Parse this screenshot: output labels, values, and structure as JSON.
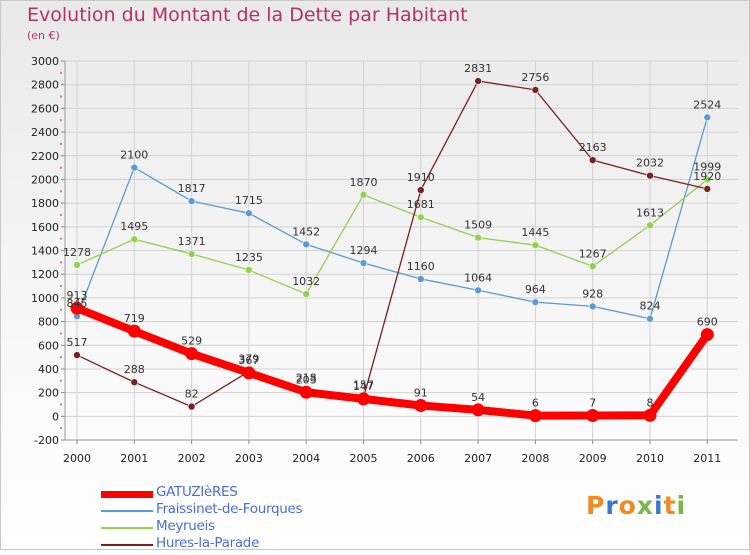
{
  "title": "Evolution du Montant de la Dette par Habitant",
  "subtitle": "(en €)",
  "logo": {
    "text": "Proxiti",
    "colors": [
      "#f08a24",
      "#3a78c9",
      "#f08a24",
      "#7ab648",
      "#3a78c9",
      "#f08a24",
      "#7ab648"
    ]
  },
  "chart_data": {
    "type": "line",
    "x": [
      "2000",
      "2001",
      "2002",
      "2003",
      "2004",
      "2005",
      "2006",
      "2007",
      "2008",
      "2009",
      "2010",
      "2011"
    ],
    "ylim": [
      -200,
      3000
    ],
    "yticks": [
      "-200",
      "0",
      "200",
      "400",
      "600",
      "800",
      "1000",
      "1200",
      "1400",
      "1600",
      "1800",
      "2000",
      "2200",
      "2400",
      "2600",
      "2800",
      "3000"
    ],
    "grid": true,
    "legend_position": "bottom-left",
    "series": [
      {
        "name": "GATUZIèRES",
        "color": "#ff0000",
        "values": [
          913,
          719,
          529,
          367,
          203,
          147,
          91,
          54,
          6,
          7,
          8,
          690
        ],
        "labels": [
          "913",
          "719",
          "529",
          "367",
          "203",
          "147",
          "91",
          "54",
          "6",
          "7",
          "8",
          "690"
        ]
      },
      {
        "name": "Fraissinet-de-Fourques",
        "color": "#5b9bd5",
        "values": [
          845,
          2100,
          1817,
          1715,
          1452,
          1294,
          1160,
          1064,
          964,
          928,
          824,
          2524
        ],
        "labels": [
          "845",
          "2100",
          "1817",
          "1715",
          "1452",
          "1294",
          "1160",
          "1064",
          "964",
          "928",
          "824",
          "2524"
        ]
      },
      {
        "name": "Meyrueis",
        "color": "#92d050",
        "values": [
          1278,
          1495,
          1371,
          1235,
          1032,
          1870,
          1681,
          1509,
          1445,
          1267,
          1613,
          1999
        ],
        "labels": [
          "1278",
          "1495",
          "1371",
          "1235",
          "1032",
          "1870",
          "1681",
          "1509",
          "1445",
          "1267",
          "1613",
          "1999"
        ]
      },
      {
        "name": "Hures-la-Parade",
        "color": "#7b2020",
        "values": [
          517,
          288,
          82,
          379,
          218,
          157,
          1910,
          2831,
          2756,
          2163,
          2032,
          1920
        ],
        "labels": [
          "517",
          "288",
          "82",
          "379",
          "218",
          "157",
          "1910",
          "2831",
          "2756",
          "2163",
          "2032",
          "1920"
        ]
      }
    ]
  }
}
